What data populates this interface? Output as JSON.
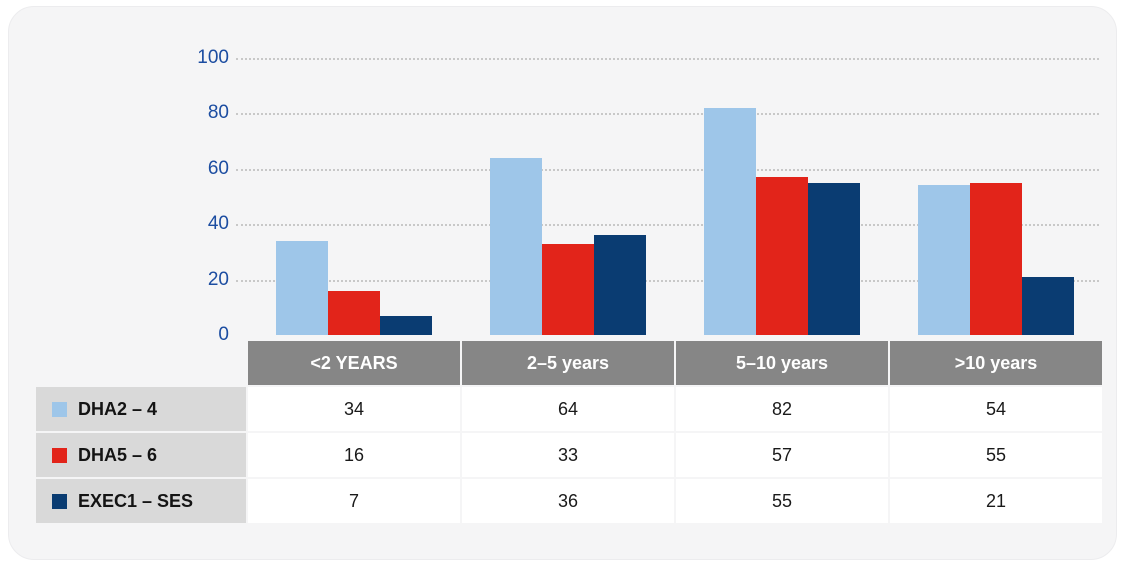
{
  "chart_data": {
    "type": "bar",
    "categories": [
      "<2 YEARS",
      "2–5 years",
      "5–10 years",
      ">10 years"
    ],
    "series": [
      {
        "name": "DHA2 – 4",
        "color": "#9ec6e9",
        "values": [
          34,
          64,
          82,
          54
        ]
      },
      {
        "name": "DHA5 – 6",
        "color": "#e2241a",
        "values": [
          16,
          33,
          57,
          55
        ]
      },
      {
        "name": "EXEC1 – SES",
        "color": "#0a3c72",
        "values": [
          7,
          36,
          55,
          21
        ]
      }
    ],
    "title": "",
    "xlabel": "",
    "ylabel": "",
    "ylim": [
      0,
      100
    ],
    "yticks": [
      0,
      20,
      40,
      60,
      80,
      100
    ],
    "grid": "horizontal-dotted",
    "legend_position": "table-row-headers"
  },
  "colors": {
    "card_background": "#f5f5f6",
    "page_background": "#ffffff",
    "axis_label": "#1c4da1",
    "gridline": "#c8c8c8",
    "table_header_background": "#868686",
    "table_header_text": "#ffffff",
    "row_label_background": "#d9d9d9",
    "cell_background": "#ffffff",
    "cell_text": "#1a1a1a"
  }
}
